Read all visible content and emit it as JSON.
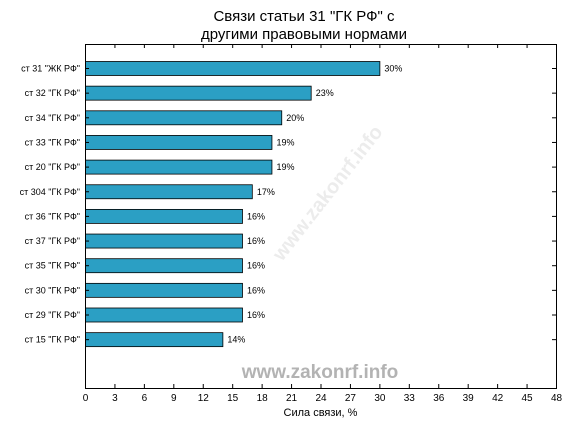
{
  "chart_data": {
    "type": "bar",
    "orientation": "horizontal",
    "title": "Связи статьи 31 \"ГК РФ\" с\nдругими правовыми нормами",
    "title_lines": [
      "Связи статьи 31 \"ГК РФ\" с",
      "другими правовыми нормами"
    ],
    "xlabel": "Сила связи, %",
    "ylabel": "",
    "xlim": [
      0,
      48
    ],
    "xticks": [
      0,
      3,
      6,
      9,
      12,
      15,
      18,
      21,
      24,
      27,
      30,
      33,
      36,
      39,
      42,
      45,
      48
    ],
    "categories": [
      "ст 31 \"ЖК РФ\"",
      "ст 32 \"ГК РФ\"",
      "ст 34 \"ГК РФ\"",
      "ст 33 \"ГК РФ\"",
      "ст 20 \"ГК РФ\"",
      "ст 304 \"ГК РФ\"",
      "ст 36 \"ГК РФ\"",
      "ст 37 \"ГК РФ\"",
      "ст 35 \"ГК РФ\"",
      "ст 30 \"ГК РФ\"",
      "ст 29 \"ГК РФ\"",
      "ст 15 \"ГК РФ\""
    ],
    "values": [
      30,
      23,
      20,
      19,
      19,
      17,
      16,
      16,
      16,
      16,
      16,
      14
    ],
    "value_labels": [
      "30%",
      "23%",
      "20%",
      "19%",
      "19%",
      "17%",
      "16%",
      "16%",
      "16%",
      "16%",
      "16%",
      "14%"
    ],
    "bar_color": "#2b9fc4",
    "grid": false,
    "legend": "none"
  },
  "watermark": {
    "text": "www.zakonrf.info",
    "diagonal_text": "www.zakonrf.info"
  }
}
